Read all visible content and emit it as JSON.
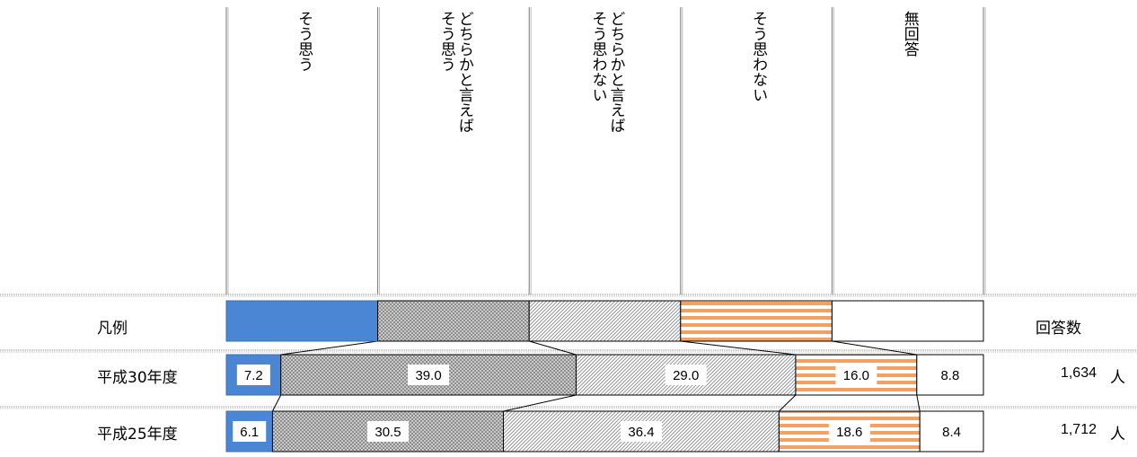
{
  "chart_data": {
    "type": "bar",
    "orientation": "horizontal",
    "stacked": true,
    "legend_label": "凡例",
    "count_header": "回答数",
    "count_unit": "人",
    "series": [
      {
        "name": "そう思う",
        "color": "#4a86d4",
        "pattern": "solid"
      },
      {
        "name": "どちらかと言えば\nそう思う",
        "color": "#8c8c8c",
        "pattern": "cross"
      },
      {
        "name": "どちらかと言えば\nそう思わない",
        "color": "#9a9a9a",
        "pattern": "diagonal"
      },
      {
        "name": "そう思わない",
        "color": "#f4a060",
        "pattern": "stripes"
      },
      {
        "name": "無回答",
        "color": "#ffffff",
        "pattern": "none"
      }
    ],
    "categories": [
      "平成30年度",
      "平成25年度"
    ],
    "values": [
      [
        7.2,
        39.0,
        29.0,
        16.0,
        8.8
      ],
      [
        6.1,
        30.5,
        36.4,
        18.6,
        8.4
      ]
    ],
    "value_labels": [
      [
        "7.2",
        "39.0",
        "29.0",
        "16.0",
        "8.8"
      ],
      [
        "6.1",
        "30.5",
        "36.4",
        "18.6",
        "8.4"
      ]
    ],
    "counts": [
      "1,634",
      "1,712"
    ],
    "xlim": [
      0,
      100
    ]
  }
}
